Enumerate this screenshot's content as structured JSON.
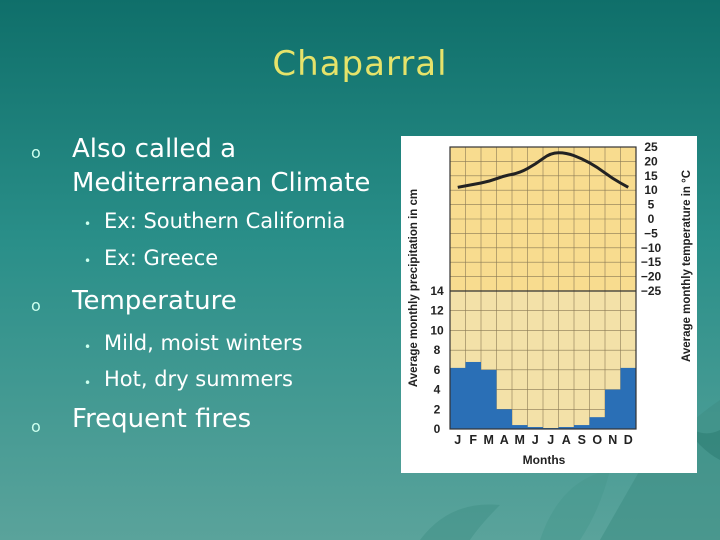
{
  "slide": {
    "title": "Chaparral",
    "bullets": [
      {
        "line1": "Also called a",
        "line2": "Mediterranean Climate",
        "subs": [
          "Ex: Southern California",
          "Ex: Greece"
        ]
      },
      {
        "line1": "Temperature",
        "subs": [
          "Mild, moist winters",
          "Hot, dry summers"
        ]
      },
      {
        "line1": "Frequent fires"
      }
    ],
    "bullet_symbol": "o",
    "sub_bullet_symbol": "•"
  },
  "colors": {
    "title": "#e6e36a",
    "temp_panel": "#f8dc8f",
    "precip_panel": "#f3e1a8",
    "precip_bar": "#2a6fb6",
    "line": "#222222"
  },
  "chart_data": {
    "type": "bar",
    "categories": [
      "J",
      "F",
      "M",
      "A",
      "M",
      "J",
      "J",
      "A",
      "S",
      "O",
      "N",
      "D"
    ],
    "xlabel": "Months",
    "ylabel_left": "Average monthly precipitation in cm",
    "ylabel_right": "Average monthly temperature in °C",
    "precip_ticks": [
      "14",
      "12",
      "10",
      "8",
      "6",
      "4",
      "2",
      "0"
    ],
    "temp_ticks": [
      "25",
      "20",
      "15",
      "10",
      "5",
      "0",
      "−5",
      "−10",
      "−15",
      "−20",
      "−25"
    ],
    "precip_cm": [
      6.2,
      6.8,
      6.0,
      2.0,
      0.4,
      0.2,
      0.1,
      0.2,
      0.4,
      1.2,
      4.0,
      6.2
    ],
    "temp_c": [
      11,
      12,
      13,
      15,
      16,
      19,
      23,
      23,
      21,
      18,
      14,
      11
    ],
    "precip_range": [
      0,
      14
    ],
    "temp_range": [
      -25,
      25
    ]
  }
}
